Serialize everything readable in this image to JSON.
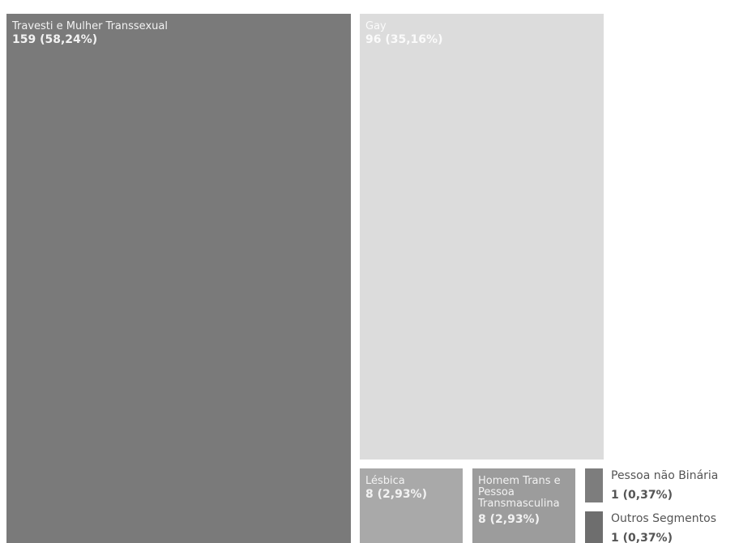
{
  "chart_data": {
    "type": "treemap",
    "items": [
      {
        "name": "Travesti e Mulher Transsexual",
        "value": 159,
        "value_label": "159 (58,24%)",
        "color": "#7a7a7a",
        "text_color": "#f2f2f2"
      },
      {
        "name": "Gay",
        "value": 96,
        "value_label": "96 (35,16%)",
        "color": "#dcdcdc",
        "text_color": "#fafafa"
      },
      {
        "name": "Lésbica",
        "value": 8,
        "value_label": "8 (2,93%)",
        "color": "#a9a9a9",
        "text_color": "#f2f2f2"
      },
      {
        "name": "Homem Trans e Pessoa Transmasculina",
        "value": 8,
        "value_label": "8 (2,93%)",
        "color": "#9c9c9c",
        "text_color": "#f2f2f2"
      },
      {
        "name": "Pessoa não Binária",
        "value": 1,
        "value_label": "1 (0,37%)",
        "color": "#7d7d7d",
        "text_color": "#555555"
      },
      {
        "name": "Outros Segmentos",
        "value": 1,
        "value_label": "1 (0,37%)",
        "color": "#6e6e6e",
        "text_color": "#555555"
      }
    ]
  }
}
